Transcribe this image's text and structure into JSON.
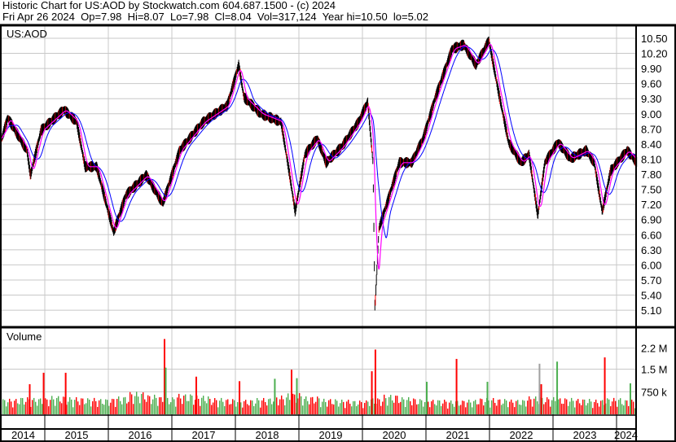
{
  "header": {
    "line1": "Historic Chart for US:AOD by Stockwatch.com 604.687.1500 - (c) 2024",
    "line2": "Fri Apr 26 2024  Op=7.98  Hi=8.07  Lo=7.98  Cl=8.04  Vol=317,124  Year hi=10.50  lo=5.02"
  },
  "chart_data": [
    {
      "type": "line",
      "title": "US:AOD",
      "x_range": [
        "2014-04",
        "2024-04"
      ],
      "ylim": [
        5.1,
        10.5
      ],
      "y_ticks": [
        "10.50",
        "10.20",
        "9.90",
        "9.60",
        "9.30",
        "9.00",
        "8.70",
        "8.40",
        "8.10",
        "7.80",
        "7.50",
        "7.20",
        "6.90",
        "6.60",
        "6.30",
        "6.00",
        "5.70",
        "5.40",
        "5.10"
      ],
      "x_ticks": [
        "2014",
        "2015",
        "2016",
        "2017",
        "2018",
        "2019",
        "2020",
        "2021",
        "2022",
        "2023",
        "2024"
      ],
      "grid": true,
      "colors": {
        "price": "#000000",
        "short_ma": "#ff00ff",
        "long_ma": "#0000ff"
      },
      "price": [
        [
          "2014-04-28",
          8.51
        ],
        [
          "2014-06-01",
          8.92
        ],
        [
          "2014-09-20",
          8.27
        ],
        [
          "2014-10-10",
          7.78
        ],
        [
          "2014-12-10",
          8.67
        ],
        [
          "2015-04-20",
          9.08
        ],
        [
          "2015-07-01",
          8.84
        ],
        [
          "2015-08-20",
          7.95
        ],
        [
          "2015-10-25",
          7.95
        ],
        [
          "2016-02-01",
          6.65
        ],
        [
          "2016-04-10",
          7.38
        ],
        [
          "2016-08-05",
          7.78
        ],
        [
          "2016-11-10",
          7.22
        ],
        [
          "2017-02-15",
          8.27
        ],
        [
          "2017-06-30",
          8.84
        ],
        [
          "2017-11-15",
          9.16
        ],
        [
          "2018-01-20",
          9.97
        ],
        [
          "2018-02-20",
          9.33
        ],
        [
          "2018-05-25",
          9.0
        ],
        [
          "2018-09-20",
          8.84
        ],
        [
          "2018-11-05",
          7.87
        ],
        [
          "2018-12-10",
          7.06
        ],
        [
          "2019-02-05",
          8.19
        ],
        [
          "2019-04-15",
          8.51
        ],
        [
          "2019-06-05",
          8.03
        ],
        [
          "2019-09-05",
          8.35
        ],
        [
          "2019-12-10",
          8.84
        ],
        [
          "2020-02-01",
          9.24
        ],
        [
          "2020-03-01",
          8.03
        ],
        [
          "2020-03-12",
          5.12
        ],
        [
          "2020-04-05",
          6.73
        ],
        [
          "2020-05-20",
          7.22
        ],
        [
          "2020-07-30",
          8.03
        ],
        [
          "2020-10-10",
          8.03
        ],
        [
          "2020-12-15",
          8.51
        ],
        [
          "2021-02-25",
          9.33
        ],
        [
          "2021-05-30",
          10.29
        ],
        [
          "2021-08-05",
          10.37
        ],
        [
          "2021-10-15",
          9.97
        ],
        [
          "2021-12-28",
          10.45
        ],
        [
          "2022-02-20",
          9.48
        ],
        [
          "2022-04-20",
          8.43
        ],
        [
          "2022-06-30",
          8.03
        ],
        [
          "2022-08-15",
          8.19
        ],
        [
          "2022-10-05",
          6.98
        ],
        [
          "2022-11-15",
          8.03
        ],
        [
          "2023-01-30",
          8.43
        ],
        [
          "2023-04-10",
          8.11
        ],
        [
          "2023-07-10",
          8.27
        ],
        [
          "2023-08-25",
          8.03
        ],
        [
          "2023-10-10",
          7.06
        ],
        [
          "2023-11-28",
          7.87
        ],
        [
          "2024-03-01",
          8.27
        ],
        [
          "2024-04-26",
          8.04
        ]
      ]
    },
    {
      "type": "bar",
      "title": "Volume",
      "y_ticks": [
        "2.2 M",
        "1.5 M",
        "750 k"
      ],
      "colors": {
        "up": "#4caf50",
        "down": "#ff0000",
        "flat": "#a0a0a0"
      },
      "baseline_quarterly_volume_m": [
        0.38,
        0.42,
        0.4,
        0.45,
        0.42,
        0.4,
        0.38,
        0.44,
        0.55,
        0.48,
        0.42,
        0.5,
        0.46,
        0.4,
        0.38,
        0.36,
        0.4,
        0.46,
        0.52,
        0.44,
        0.38,
        0.36,
        0.34,
        0.4,
        0.48,
        0.42,
        0.38,
        0.36,
        0.34,
        0.36,
        0.4,
        0.38,
        0.36,
        0.44,
        0.42,
        0.4,
        0.38,
        0.36,
        0.4,
        0.36
      ],
      "spikes": [
        [
          "2014-10-01",
          1.0,
          "down"
        ],
        [
          "2014-12-20",
          1.38,
          "down"
        ],
        [
          "2015-04-25",
          1.38,
          "down"
        ],
        [
          "2016-11-15",
          2.5,
          "down"
        ],
        [
          "2016-11-22",
          1.55,
          "up"
        ],
        [
          "2017-05-15",
          1.25,
          "down"
        ],
        [
          "2018-01-20",
          1.1,
          "down"
        ],
        [
          "2018-08-10",
          1.18,
          "up"
        ],
        [
          "2018-11-15",
          1.48,
          "down"
        ],
        [
          "2018-12-15",
          1.2,
          "up"
        ],
        [
          "2020-02-20",
          1.43,
          "down"
        ],
        [
          "2020-03-10",
          2.15,
          "down"
        ],
        [
          "2021-01-01",
          1.08,
          "up"
        ],
        [
          "2021-06-20",
          1.84,
          "down"
        ],
        [
          "2021-12-15",
          1.08,
          "up"
        ],
        [
          "2022-10-10",
          1.68,
          "flat"
        ],
        [
          "2022-10-20",
          1.0,
          "down"
        ],
        [
          "2023-01-20",
          1.75,
          "up"
        ],
        [
          "2023-10-20",
          1.89,
          "down"
        ],
        [
          "2024-03-15",
          1.03,
          "up"
        ]
      ]
    }
  ]
}
